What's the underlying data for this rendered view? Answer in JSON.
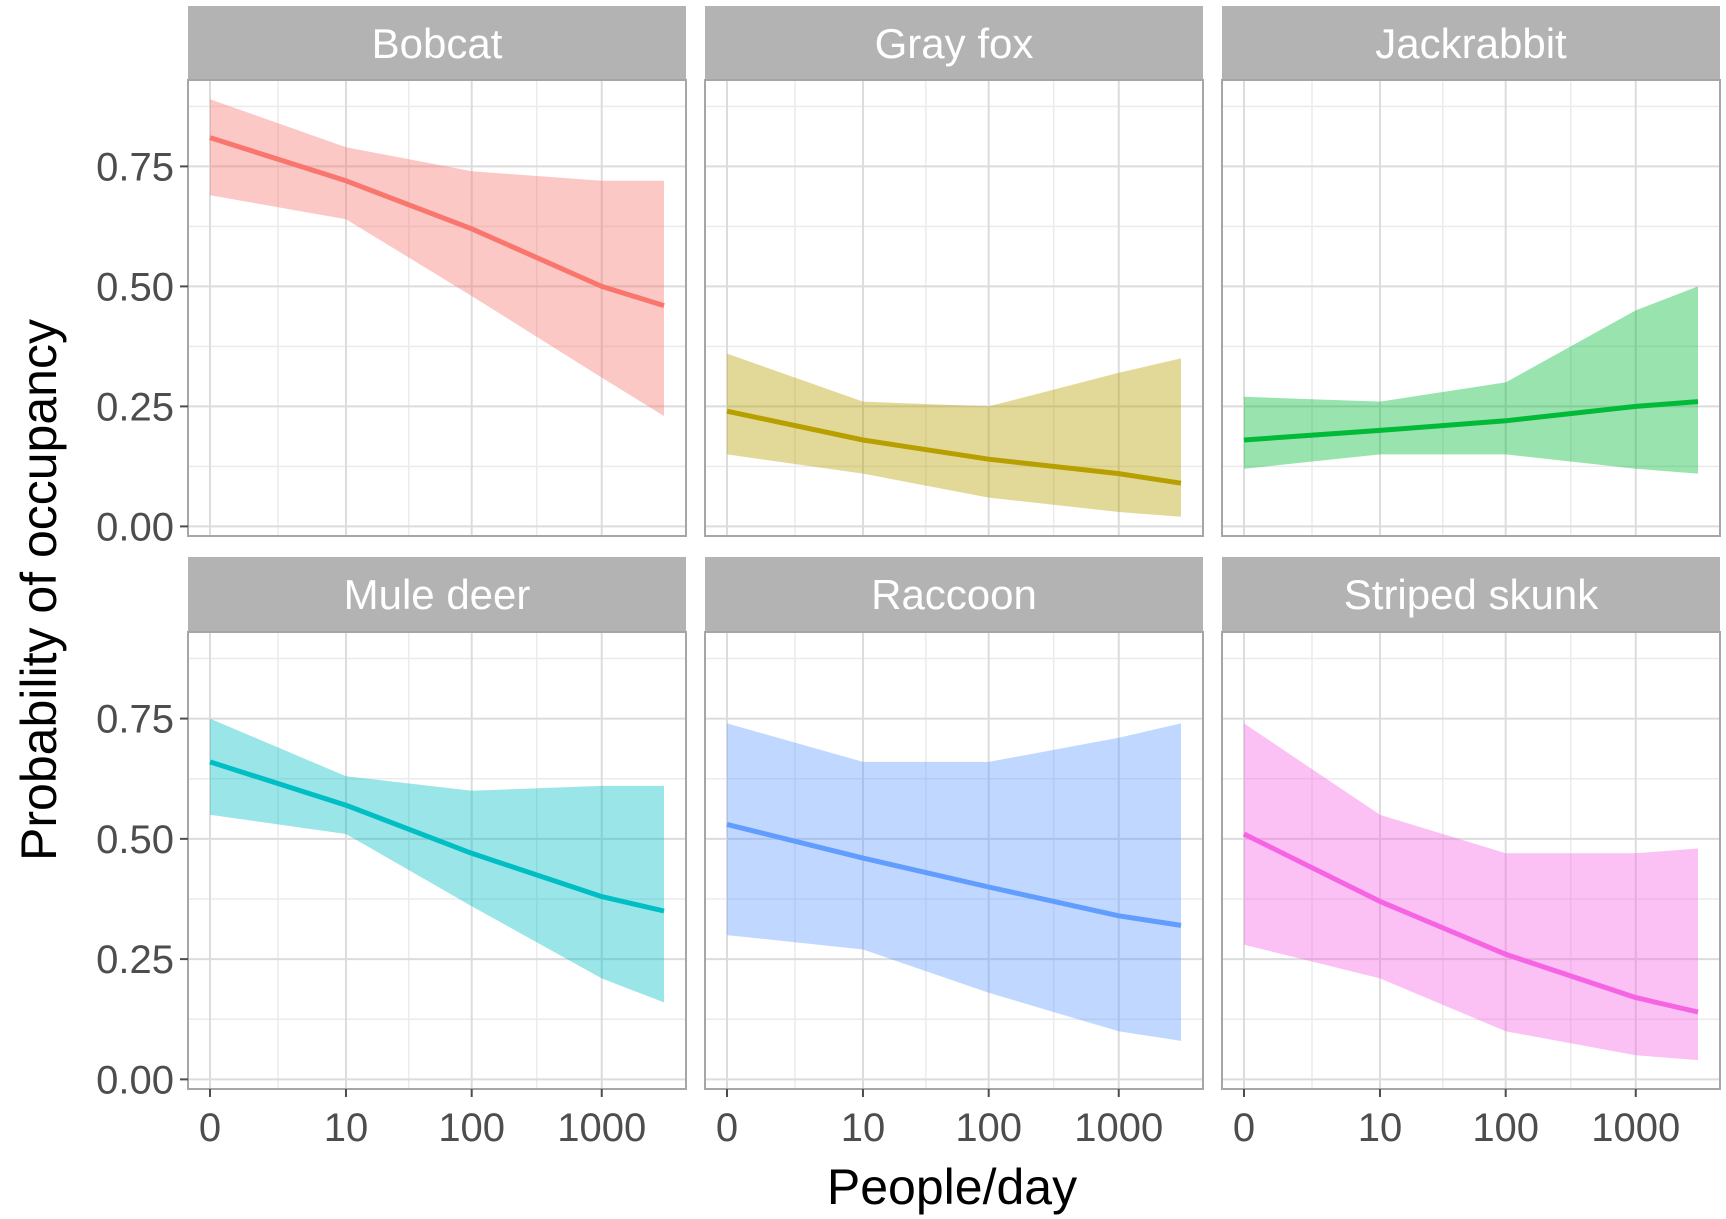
{
  "chart_data": {
    "type": "line",
    "xlabel": "People/day",
    "ylabel": "Probability of occupancy",
    "x_ticks": [
      {
        "value": 0,
        "label": "0"
      },
      {
        "value": 10,
        "label": "10"
      },
      {
        "value": 100,
        "label": "100"
      },
      {
        "value": 1000,
        "label": "1000"
      }
    ],
    "y_ticks": [
      {
        "value": 0,
        "label": "0.00"
      },
      {
        "value": 0.25,
        "label": "0.25"
      },
      {
        "value": 0.5,
        "label": "0.50"
      },
      {
        "value": 0.75,
        "label": "0.75"
      }
    ],
    "x_scale": "log1p",
    "xlim": [
      0,
      3000
    ],
    "ylim": [
      -0.02,
      0.93
    ],
    "grid": true,
    "legend": "none",
    "facets": [
      {
        "name": "Bobcat",
        "color": "#F8766D",
        "x": [
          0,
          10,
          100,
          1000,
          3000
        ],
        "y": [
          0.81,
          0.72,
          0.62,
          0.5,
          0.46
        ],
        "lower": [
          0.69,
          0.64,
          0.48,
          0.31,
          0.23
        ],
        "upper": [
          0.89,
          0.79,
          0.74,
          0.72,
          0.72
        ]
      },
      {
        "name": "Gray fox",
        "color": "#B79F00",
        "x": [
          0,
          10,
          100,
          1000,
          3000
        ],
        "y": [
          0.24,
          0.18,
          0.14,
          0.11,
          0.09
        ],
        "lower": [
          0.15,
          0.11,
          0.06,
          0.03,
          0.02
        ],
        "upper": [
          0.36,
          0.26,
          0.25,
          0.32,
          0.35
        ]
      },
      {
        "name": "Jackrabbit",
        "color": "#00BA38",
        "x": [
          0,
          10,
          100,
          1000,
          3000
        ],
        "y": [
          0.18,
          0.2,
          0.22,
          0.25,
          0.26
        ],
        "lower": [
          0.12,
          0.15,
          0.15,
          0.12,
          0.11
        ],
        "upper": [
          0.27,
          0.26,
          0.3,
          0.45,
          0.5
        ]
      },
      {
        "name": "Mule deer",
        "color": "#00BFC4",
        "x": [
          0,
          10,
          100,
          1000,
          3000
        ],
        "y": [
          0.66,
          0.57,
          0.47,
          0.38,
          0.35
        ],
        "lower": [
          0.55,
          0.51,
          0.36,
          0.21,
          0.16
        ],
        "upper": [
          0.75,
          0.63,
          0.6,
          0.61,
          0.61
        ]
      },
      {
        "name": "Raccoon",
        "color": "#619CFF",
        "x": [
          0,
          10,
          100,
          1000,
          3000
        ],
        "y": [
          0.53,
          0.46,
          0.4,
          0.34,
          0.32
        ],
        "lower": [
          0.3,
          0.27,
          0.18,
          0.1,
          0.08
        ],
        "upper": [
          0.74,
          0.66,
          0.66,
          0.71,
          0.74
        ]
      },
      {
        "name": "Striped skunk",
        "color": "#F564E3",
        "x": [
          0,
          10,
          100,
          1000,
          3000
        ],
        "y": [
          0.51,
          0.37,
          0.26,
          0.17,
          0.14
        ],
        "lower": [
          0.28,
          0.21,
          0.1,
          0.05,
          0.04
        ],
        "upper": [
          0.74,
          0.55,
          0.47,
          0.47,
          0.48
        ]
      }
    ]
  }
}
